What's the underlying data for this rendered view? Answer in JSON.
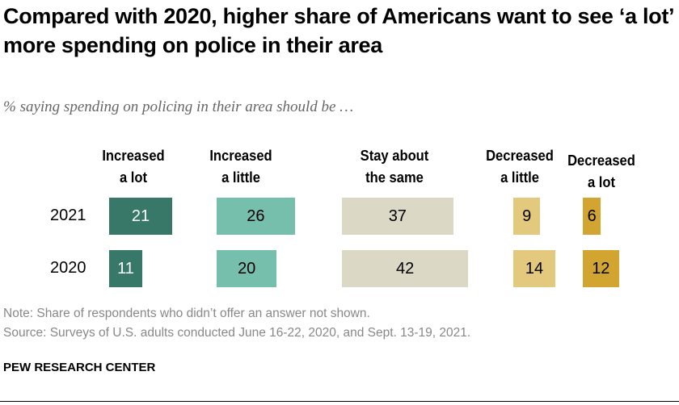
{
  "title": "Compared with 2020, higher share of Americans want to see ‘a lot’ more spending on police in their area",
  "subtitle": "% saying spending on policing in their area should be …",
  "chart_data": {
    "type": "bar",
    "orientation": "horizontal-grouped-columns",
    "categories": [
      "Increased a lot",
      "Increased a little",
      "Stay about the same",
      "Decreased a little",
      "Decreased a lot"
    ],
    "rows": [
      "2021",
      "2020"
    ],
    "series": [
      {
        "name": "2021",
        "values": [
          21,
          26,
          37,
          9,
          6
        ]
      },
      {
        "name": "2020",
        "values": [
          11,
          20,
          42,
          14,
          12
        ]
      }
    ],
    "colors": [
      "#377868",
      "#76bfad",
      "#dbd8c6",
      "#e3c97d",
      "#d1a530"
    ],
    "label_colors": [
      "#ffffff",
      "#000000",
      "#000000",
      "#000000",
      "#000000"
    ]
  },
  "note": "Note: Share of respondents who didn’t offer an answer not shown.",
  "source": "Source: Surveys of U.S. adults conducted June 16-22, 2020, and Sept. 13-19, 2021.",
  "brand": "PEW RESEARCH CENTER"
}
